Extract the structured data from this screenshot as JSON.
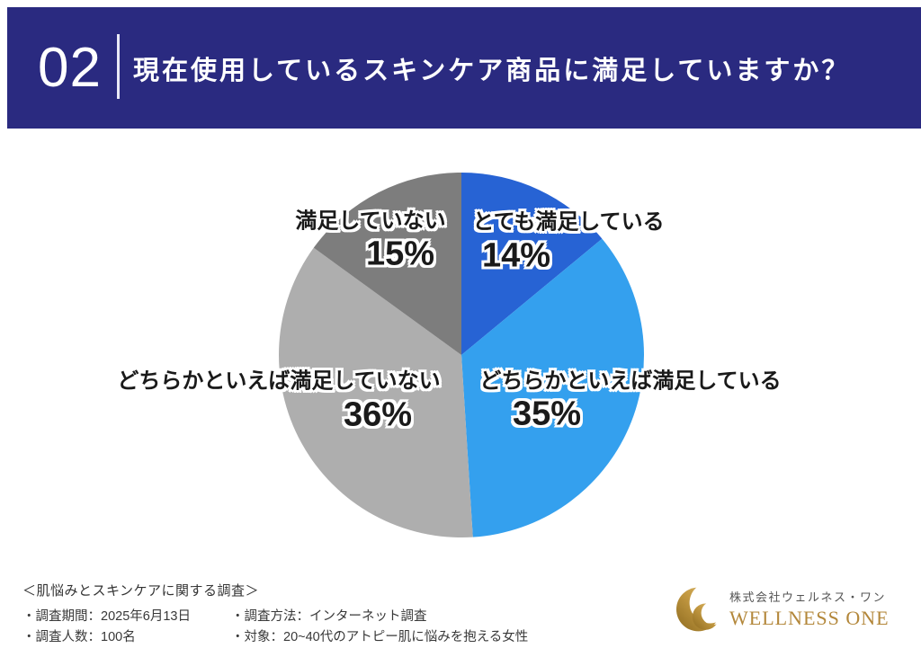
{
  "header": {
    "number": "02",
    "title": "現在使用しているスキンケア商品に満足していますか？",
    "bg_color": "#2a2a80"
  },
  "chart_data": {
    "type": "pie",
    "title": "現在使用しているスキンケア商品に満足していますか？",
    "unit": "%",
    "start_angle_deg": 0,
    "direction": "clockwise",
    "categories": [
      "とても満足している",
      "どちらかといえば満足している",
      "どちらかといえば満足していない",
      "満足していない"
    ],
    "values": [
      14,
      35,
      36,
      15
    ],
    "segments": [
      {
        "label": "とても満足している",
        "value": 14,
        "pct_label": "14%",
        "color": "#2763d4"
      },
      {
        "label": "どちらかといえば満足している",
        "value": 35,
        "pct_label": "35%",
        "color": "#34a0ee"
      },
      {
        "label": "どちらかといえば満足していない",
        "value": 36,
        "pct_label": "36%",
        "color": "#aeaeae"
      },
      {
        "label": "満足していない",
        "value": 15,
        "pct_label": "15%",
        "color": "#7d7d7d"
      }
    ]
  },
  "footer": {
    "survey_title": "＜肌悩みとスキンケアに関する調査＞",
    "period": "・調査期間：2025年6月13日",
    "method": "・調査方法：インターネット調査",
    "count": "・調査人数：100名",
    "target": "・対象：20~40代のアトピー肌に悩みを抱える女性"
  },
  "logo": {
    "icon": "double-crescent-moon-icon",
    "company_jp": "株式会社ウェルネス・ワン",
    "company_en": "WELLNESS ONE",
    "gold_color": "#b3873a"
  }
}
